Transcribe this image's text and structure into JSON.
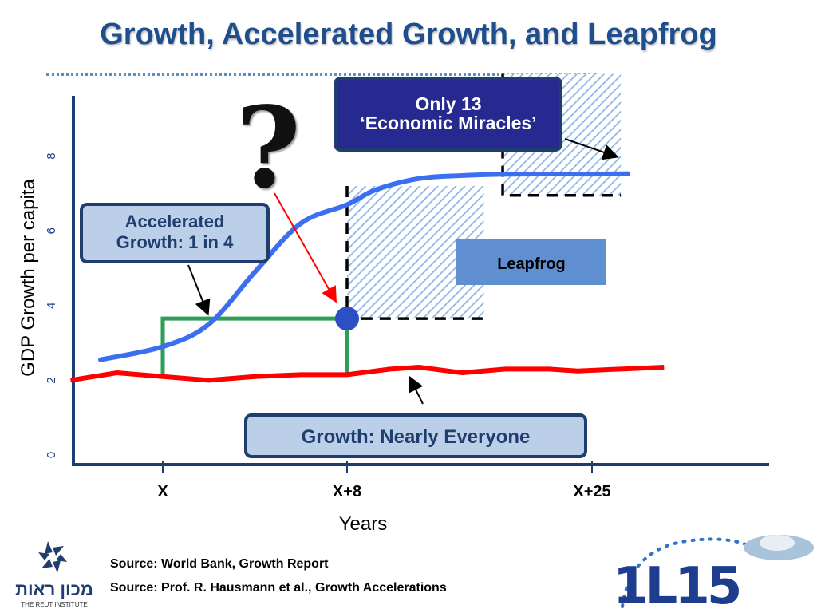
{
  "title": "Growth, Accelerated Growth, and Leapfrog",
  "chart_data": {
    "type": "line",
    "ylabel": "GDP Growth per capita",
    "xlabel": "Years",
    "yticks": [
      "0",
      "2",
      "4",
      "6",
      "8"
    ],
    "ylim": [
      0,
      10
    ],
    "xticks": [
      "X",
      "X+8",
      "X+25"
    ],
    "series": [
      {
        "color": "#ff0000",
        "points": [
          [
            -4,
            2.0
          ],
          [
            -2,
            2.2
          ],
          [
            0,
            2.1
          ],
          [
            2,
            2.0
          ],
          [
            4,
            2.1
          ],
          [
            6,
            2.15
          ],
          [
            8,
            2.15
          ],
          [
            11,
            2.3
          ],
          [
            13,
            2.35
          ],
          [
            16,
            2.2
          ],
          [
            19,
            2.3
          ],
          [
            22,
            2.3
          ],
          [
            24,
            2.25
          ],
          [
            27,
            2.3
          ],
          [
            30,
            2.35
          ]
        ]
      },
      {
        "color": "#3b6ff0",
        "points": [
          [
            -2.7,
            2.55
          ],
          [
            0,
            2.9
          ],
          [
            2,
            3.5
          ],
          [
            4,
            4.9
          ],
          [
            6,
            6.2
          ],
          [
            8,
            6.7
          ],
          [
            10,
            7.1
          ],
          [
            13,
            7.4
          ],
          [
            16,
            7.48
          ],
          [
            20,
            7.52
          ],
          [
            25,
            7.52
          ],
          [
            27.5,
            7.53
          ]
        ]
      }
    ],
    "regions": [
      {
        "name": "accelerated-growth-box",
        "x": [
          0,
          8
        ],
        "y": [
          2.1,
          3.65
        ],
        "color": "#2e9e57"
      },
      {
        "name": "leapfrog-region",
        "x": [
          8,
          17.5
        ],
        "y": [
          3.65,
          7.2
        ],
        "color": "#8fb4e6"
      },
      {
        "name": "miracles-region",
        "x": [
          18.8,
          27
        ],
        "y": [
          6.95,
          10.2
        ],
        "color": "#8fb4e6"
      }
    ],
    "annotations": {
      "miracles_line1": "Only 13",
      "miracles_line2": "‘Economic Miracles’",
      "accelerated_line1": "Accelerated",
      "accelerated_line2": "Growth:  1 in 4",
      "leapfrog": "Leapfrog",
      "growth": "Growth:  Nearly Everyone",
      "question": "?"
    }
  },
  "sources": [
    "Source: World Bank, Growth Report",
    "Source: Prof. R. Hausmann et al., Growth Accelerations"
  ],
  "logos": {
    "left_hebrew": "מכון ראות",
    "left_english": "THE REUT INSTITUTE",
    "right_mark": "1L15"
  },
  "colors": {
    "title": "#1f4e8c",
    "axis": "#1f3d6e",
    "growth_line": "#ff0000",
    "accelerated_line": "#3b6ff0",
    "box_green": "#2e9e57",
    "hatch": "#8fb4e6"
  }
}
